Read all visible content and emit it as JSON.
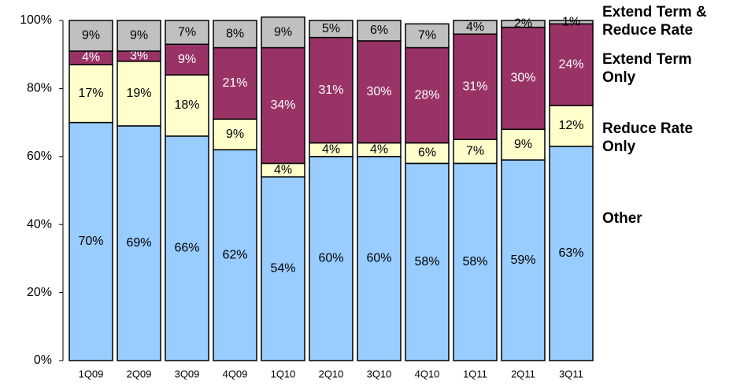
{
  "chart_data": {
    "type": "stacked_bar",
    "categories": [
      "1Q09",
      "2Q09",
      "3Q09",
      "4Q09",
      "1Q10",
      "2Q10",
      "3Q10",
      "4Q10",
      "1Q11",
      "2Q11",
      "3Q11"
    ],
    "series": [
      {
        "name": "Extend Term & Reduce Rate",
        "color": "#99ccff",
        "label_color": "#000000",
        "values": [
          70,
          69,
          66,
          62,
          54,
          60,
          60,
          58,
          58,
          59,
          63
        ],
        "value_labels": [
          "70%",
          "69%",
          "66%",
          "62%",
          "54%",
          "60%",
          "60%",
          "58%",
          "58%",
          "59%",
          "63%"
        ]
      },
      {
        "name": "Extend Term Only",
        "color": "#ffffcc",
        "label_color": "#000000",
        "values": [
          17,
          19,
          18,
          9,
          4,
          4,
          4,
          6,
          7,
          9,
          12
        ],
        "value_labels": [
          "17%",
          "19%",
          "18%",
          "9%",
          "4%",
          "4%",
          "4%",
          "6%",
          "7%",
          "9%",
          "12%"
        ]
      },
      {
        "name": "Reduce Rate Only",
        "color": "#993366",
        "label_color": "#ffffff",
        "values": [
          4,
          3,
          9,
          21,
          34,
          31,
          30,
          28,
          31,
          30,
          24
        ],
        "value_labels": [
          "4%",
          "3%",
          "9%",
          "21%",
          "34%",
          "31%",
          "30%",
          "28%",
          "31%",
          "30%",
          "24%"
        ]
      },
      {
        "name": "Other",
        "color": "#c0c0c0",
        "label_color": "#000000",
        "values": [
          9,
          9,
          7,
          8,
          9,
          5,
          6,
          7,
          4,
          2,
          1
        ],
        "value_labels": [
          "9%",
          "9%",
          "7%",
          "8%",
          "9%",
          "5%",
          "6%",
          "7%",
          "4%",
          "2%",
          "1%"
        ]
      }
    ],
    "ylim": [
      0,
      100
    ],
    "yticks": [
      {
        "value": 0,
        "label": "0%"
      },
      {
        "value": 20,
        "label": "20%"
      },
      {
        "value": 40,
        "label": "40%"
      },
      {
        "value": 60,
        "label": "60%"
      },
      {
        "value": 80,
        "label": "80%"
      },
      {
        "value": 100,
        "label": "100%"
      }
    ],
    "grid": false
  }
}
